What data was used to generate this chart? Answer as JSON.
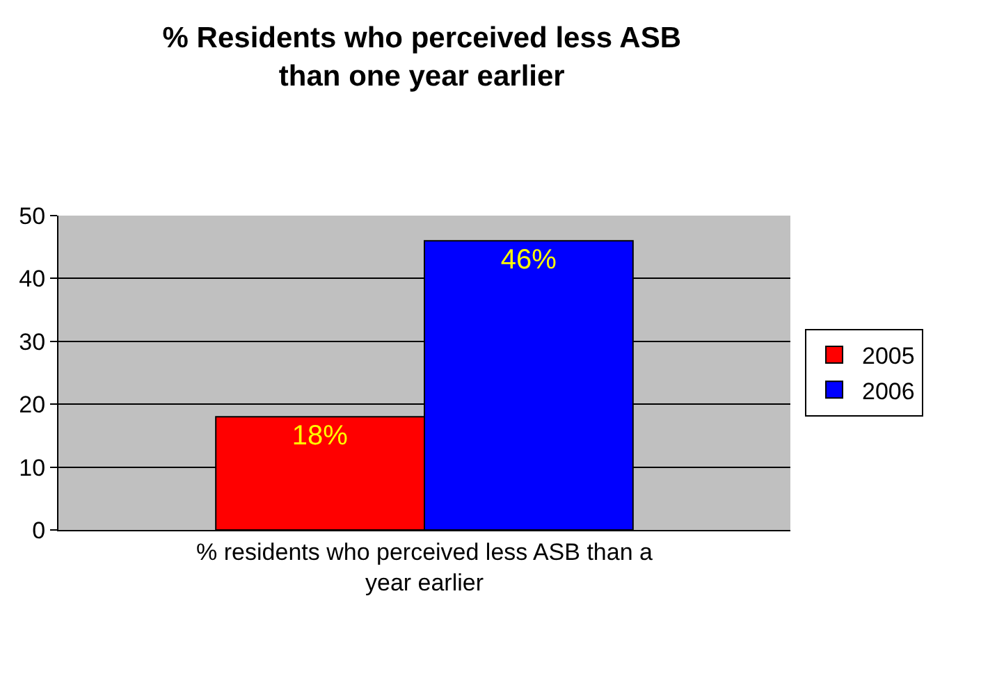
{
  "chart_data": {
    "type": "bar",
    "title": "% Residents who perceived less ASB than one year earlier",
    "categories": [
      "% residents who perceived less ASB than a year earlier"
    ],
    "series": [
      {
        "name": "2005",
        "color": "#ff0000",
        "values": [
          18
        ],
        "value_labels": [
          "18%"
        ]
      },
      {
        "name": "2006",
        "color": "#0000ff",
        "values": [
          46
        ],
        "value_labels": [
          "46%"
        ]
      }
    ],
    "ylim": [
      0,
      50
    ],
    "yticks": [
      0,
      10,
      20,
      30,
      40,
      50
    ],
    "grid": "y",
    "legend": "right"
  }
}
